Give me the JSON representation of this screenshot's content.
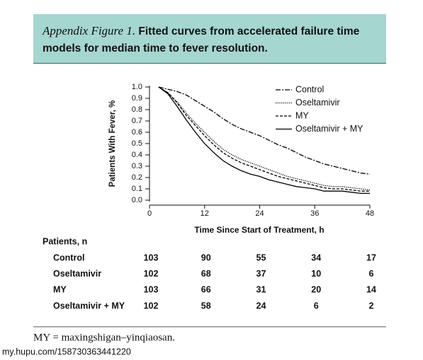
{
  "chart_data": {
    "type": "line",
    "figure_label": "Appendix Figure 1.",
    "title": "Fitted curves from accelerated failure time models for median time to fever resolution.",
    "xlabel": "Time Since Start of Treatment, h",
    "ylabel": "Patients With Fever, %",
    "x": [
      2,
      4,
      6,
      8,
      10,
      12,
      14,
      16,
      18,
      20,
      22,
      24,
      26,
      28,
      30,
      32,
      34,
      36,
      38,
      40,
      42,
      44,
      46,
      48
    ],
    "series": [
      {
        "name": "Control",
        "color": "#000000",
        "line_style": "dashdot",
        "values": [
          1.0,
          0.98,
          0.96,
          0.93,
          0.88,
          0.83,
          0.78,
          0.72,
          0.67,
          0.63,
          0.6,
          0.57,
          0.53,
          0.49,
          0.46,
          0.42,
          0.38,
          0.35,
          0.32,
          0.3,
          0.28,
          0.26,
          0.24,
          0.23
        ]
      },
      {
        "name": "Oseltamivir",
        "color": "#000000",
        "line_style": "dotted",
        "values": [
          1.0,
          0.95,
          0.87,
          0.77,
          0.68,
          0.6,
          0.52,
          0.45,
          0.4,
          0.36,
          0.33,
          0.3,
          0.27,
          0.24,
          0.21,
          0.19,
          0.17,
          0.15,
          0.13,
          0.12,
          0.12,
          0.11,
          0.1,
          0.09
        ]
      },
      {
        "name": "MY",
        "color": "#000000",
        "line_style": "dashed",
        "values": [
          1.0,
          0.95,
          0.86,
          0.75,
          0.66,
          0.57,
          0.49,
          0.42,
          0.37,
          0.33,
          0.3,
          0.27,
          0.24,
          0.21,
          0.19,
          0.17,
          0.15,
          0.13,
          0.11,
          0.1,
          0.1,
          0.09,
          0.08,
          0.08
        ]
      },
      {
        "name": "Oseltamivir + MY",
        "color": "#000000",
        "line_style": "solid",
        "values": [
          1.0,
          0.94,
          0.83,
          0.71,
          0.6,
          0.5,
          0.42,
          0.35,
          0.3,
          0.26,
          0.23,
          0.21,
          0.18,
          0.16,
          0.14,
          0.12,
          0.11,
          0.1,
          0.08,
          0.08,
          0.08,
          0.07,
          0.06,
          0.06
        ]
      }
    ],
    "xlim": [
      0,
      48
    ],
    "xticks": [
      0,
      12,
      24,
      36,
      48
    ],
    "ylim": [
      0,
      1
    ],
    "yticks": [
      {
        "value": 0,
        "label": "0.0"
      },
      0.1,
      0.2,
      0.3,
      0.4,
      0.5,
      0.6,
      0.7,
      0.8,
      0.9,
      {
        "value": 1,
        "label": "1.0"
      }
    ],
    "legend": "upper right"
  },
  "table": {
    "header": "Patients, n",
    "rows": [
      [
        "Control",
        103,
        90,
        55,
        34,
        17
      ],
      [
        "Oseltamivir",
        102,
        68,
        37,
        10,
        6
      ],
      [
        "MY",
        103,
        66,
        31,
        20,
        14
      ],
      [
        "Oseltamivir + MY",
        102,
        58,
        24,
        6,
        2
      ]
    ]
  },
  "footnote": "MY = maxingshigan–yinqiaosan.",
  "watermark": "my.hupu.com/158730363441220"
}
